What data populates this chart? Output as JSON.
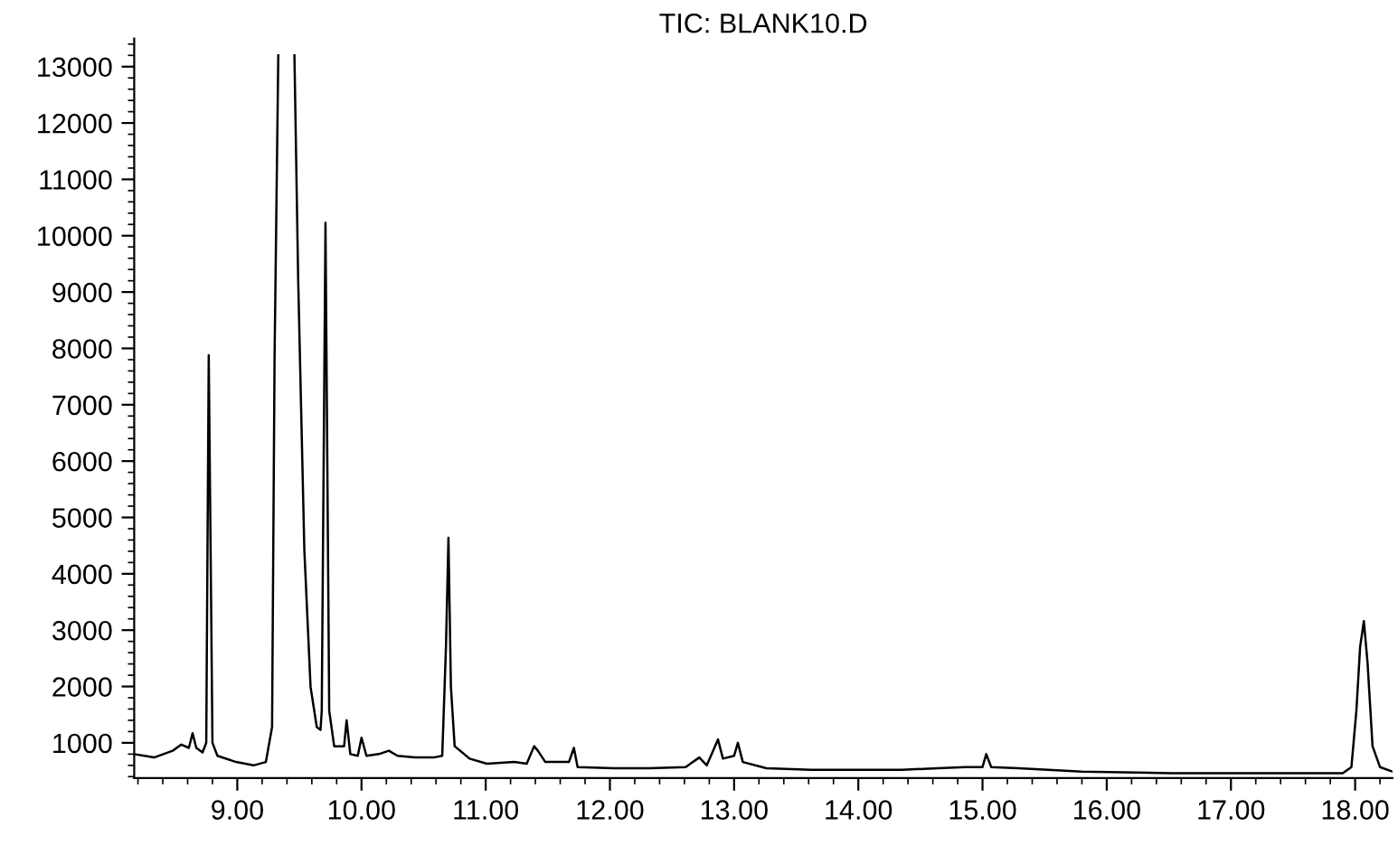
{
  "chart_data": {
    "type": "line",
    "title": "TIC: BLANK10.D",
    "x": [
      8.17,
      8.33,
      8.48,
      8.55,
      8.61,
      8.64,
      8.67,
      8.72,
      8.75,
      8.77,
      8.8,
      8.84,
      8.99,
      9.13,
      9.23,
      9.28,
      9.3,
      9.33,
      9.4,
      9.46,
      9.49,
      9.54,
      9.59,
      9.64,
      9.67,
      9.68,
      9.71,
      9.74,
      9.78,
      9.86,
      9.88,
      9.91,
      9.97,
      10.0,
      10.04,
      10.14,
      10.22,
      10.29,
      10.43,
      10.58,
      10.65,
      10.68,
      10.7,
      10.72,
      10.75,
      10.87,
      11.01,
      11.23,
      11.33,
      11.39,
      11.42,
      11.48,
      11.67,
      11.71,
      11.74,
      12.03,
      12.32,
      12.61,
      12.72,
      12.78,
      12.87,
      12.91,
      13.0,
      13.03,
      13.07,
      13.26,
      13.62,
      14.06,
      14.35,
      14.64,
      14.86,
      15.0,
      15.03,
      15.07,
      15.29,
      15.8,
      16.52,
      17.25,
      17.9,
      17.97,
      18.01,
      18.04,
      18.07,
      18.1,
      18.14,
      18.2,
      18.3
    ],
    "series": [
      {
        "color": "#000000",
        "values": [
          800,
          740,
          860,
          970,
          910,
          1170,
          910,
          830,
          1000,
          7880,
          1000,
          770,
          660,
          600,
          660,
          1280,
          7820,
          13200,
          null,
          13200,
          9240,
          4410,
          1990,
          1280,
          1230,
          1570,
          10230,
          1570,
          940,
          940,
          1400,
          800,
          770,
          1090,
          770,
          800,
          860,
          770,
          740,
          740,
          770,
          2700,
          4640,
          1990,
          940,
          720,
          630,
          660,
          630,
          940,
          860,
          660,
          660,
          910,
          570,
          550,
          550,
          570,
          740,
          600,
          1060,
          720,
          770,
          1000,
          660,
          550,
          520,
          520,
          520,
          550,
          570,
          570,
          800,
          570,
          550,
          490,
          460,
          460,
          460,
          570,
          1570,
          2700,
          3160,
          2420,
          940,
          570,
          490
        ]
      }
    ],
    "xlim": [
      8.17,
      18.3
    ],
    "ylim": [
      375,
      13500
    ],
    "xticks": [
      {
        "value": 9,
        "label": "9.00"
      },
      {
        "value": 10,
        "label": "10.00"
      },
      {
        "value": 11,
        "label": "11.00"
      },
      {
        "value": 12,
        "label": "12.00"
      },
      {
        "value": 13,
        "label": "13.00"
      },
      {
        "value": 14,
        "label": "14.00"
      },
      {
        "value": 15,
        "label": "15.00"
      },
      {
        "value": 16,
        "label": "16.00"
      },
      {
        "value": 17,
        "label": "17.00"
      },
      {
        "value": 18,
        "label": "18.00"
      }
    ],
    "yticks": [
      1000,
      2000,
      3000,
      4000,
      5000,
      6000,
      7000,
      8000,
      9000,
      10000,
      11000,
      12000,
      13000
    ],
    "grid": false,
    "legend": false,
    "marker": "none",
    "line_style": "solid"
  }
}
